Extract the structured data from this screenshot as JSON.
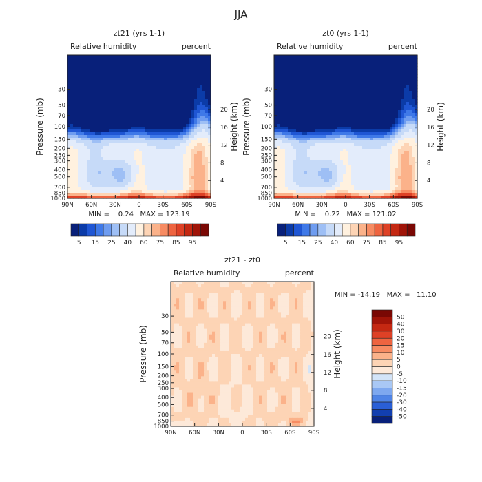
{
  "figure_title": "JJA",
  "chart_data": [
    {
      "type": "heatmap",
      "title": "zt21 (yrs 1-1)",
      "left_label": "Relative humidity",
      "right_label": "percent",
      "xlabel": "",
      "ylabel": "Pressure (mb)",
      "ylabel_right": "Height (km)",
      "x_ticks": [
        "90N",
        "60N",
        "30N",
        "0",
        "30S",
        "60S",
        "90S"
      ],
      "x_values": [
        90,
        60,
        30,
        0,
        -30,
        -60,
        -90
      ],
      "p_ticks": [
        30,
        50,
        70,
        100,
        150,
        200,
        250,
        300,
        400,
        500,
        700,
        850,
        1000
      ],
      "z_ticks": [
        20,
        16,
        12,
        8,
        4
      ],
      "stats": "MIN =    0.24   MAX = 123.19",
      "min": 0.24,
      "max": 123.19,
      "colorbar": {
        "orientation": "horizontal",
        "levels": [
          "5",
          "15",
          "25",
          "40",
          "60",
          "75",
          "85",
          "95"
        ],
        "colors": [
          "#08207a",
          "#0b3ba8",
          "#1f56d4",
          "#3f79e8",
          "#6e9cf0",
          "#9ebff5",
          "#c6daf8",
          "#e3ecfb",
          "#fff1df",
          "#fdd4b5",
          "#fbb28a",
          "#f78b62",
          "#ee6440",
          "#de4126",
          "#c42812",
          "#a01408",
          "#7a0804"
        ]
      },
      "pattern": "full"
    },
    {
      "type": "heatmap",
      "title": "zt0 (yrs 1-1)",
      "left_label": "Relative humidity",
      "right_label": "percent",
      "xlabel": "",
      "ylabel": "Pressure (mb)",
      "ylabel_right": "Height (km)",
      "x_ticks": [
        "90N",
        "60N",
        "30N",
        "0",
        "30S",
        "60S",
        "90S"
      ],
      "x_values": [
        90,
        60,
        30,
        0,
        -30,
        -60,
        -90
      ],
      "p_ticks": [
        30,
        50,
        70,
        100,
        150,
        200,
        250,
        300,
        400,
        500,
        700,
        850,
        1000
      ],
      "z_ticks": [
        20,
        16,
        12,
        8,
        4
      ],
      "stats": "MIN =    0.22   MAX = 121.02",
      "min": 0.22,
      "max": 121.02,
      "colorbar": {
        "orientation": "horizontal",
        "levels": [
          "5",
          "15",
          "25",
          "40",
          "60",
          "75",
          "85",
          "95"
        ],
        "colors": [
          "#08207a",
          "#0b3ba8",
          "#1f56d4",
          "#3f79e8",
          "#6e9cf0",
          "#9ebff5",
          "#c6daf8",
          "#e3ecfb",
          "#fff1df",
          "#fdd4b5",
          "#fbb28a",
          "#f78b62",
          "#ee6440",
          "#de4126",
          "#c42812",
          "#a01408",
          "#7a0804"
        ]
      },
      "pattern": "full"
    },
    {
      "type": "heatmap",
      "title": "zt21 - zt0",
      "left_label": "Relative humidity",
      "right_label": "percent",
      "xlabel": "",
      "ylabel": "Pressure (mb)",
      "ylabel_right": "Height (km)",
      "x_ticks": [
        "90N",
        "60N",
        "30N",
        "0",
        "30S",
        "60S",
        "90S"
      ],
      "x_values": [
        90,
        60,
        30,
        0,
        -30,
        -60,
        -90
      ],
      "p_ticks": [
        30,
        50,
        70,
        100,
        150,
        200,
        250,
        300,
        400,
        500,
        700,
        850,
        1000
      ],
      "z_ticks": [
        20,
        16,
        12,
        8,
        4
      ],
      "stats": "MIN = -14.19   MAX =   11.10",
      "min": -14.19,
      "max": 11.1,
      "colorbar": {
        "orientation": "vertical",
        "levels": [
          "50",
          "40",
          "30",
          "20",
          "15",
          "10",
          "5",
          "0",
          "-5",
          "-10",
          "-15",
          "-20",
          "-30",
          "-40",
          "-50"
        ],
        "colors": [
          "#7a0804",
          "#a01408",
          "#c42812",
          "#de4126",
          "#ee6440",
          "#f78b62",
          "#fbb28a",
          "#fdd4b5",
          "#fde9d9",
          "#d3e4f8",
          "#a9c8f5",
          "#7ea8ef",
          "#4f84e6",
          "#2a5fd6",
          "#123fb0",
          "#08207a"
        ]
      },
      "pattern": "diff"
    }
  ]
}
